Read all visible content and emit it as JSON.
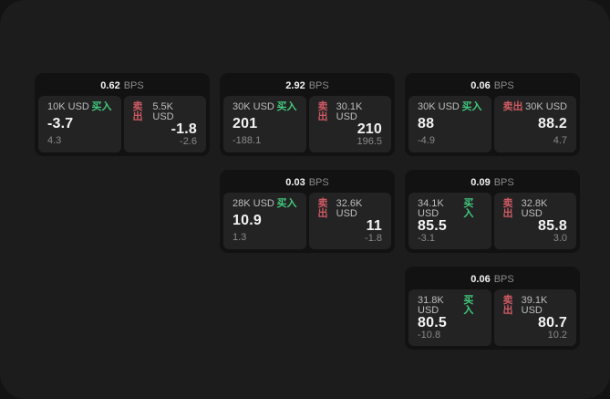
{
  "colors": {
    "page_bg": "#131313",
    "panel_bg": "#1c1c1c",
    "card_bg": "#121212",
    "tile_bg": "#232323",
    "text_primary": "#f2f2f2",
    "text_secondary": "#bdbdbd",
    "text_muted": "#8a8a8a",
    "buy_green": "#41c97d",
    "sell_red": "#d05a64"
  },
  "cards": [
    {
      "bps_value": "0.62",
      "bps_unit": "BPS",
      "buy": {
        "amount": "10K USD",
        "label": "买入",
        "price": "-3.7",
        "delta": "4.3"
      },
      "sell": {
        "label": "卖出",
        "amount": "5.5K USD",
        "price": "-1.8",
        "delta": "-2.6"
      }
    },
    {
      "bps_value": "2.92",
      "bps_unit": "BPS",
      "buy": {
        "amount": "30K USD",
        "label": "买入",
        "price": "201",
        "delta": "-188.1"
      },
      "sell": {
        "label": "卖出",
        "amount": "30.1K USD",
        "price": "210",
        "delta": "196.5"
      }
    },
    {
      "bps_value": "0.06",
      "bps_unit": "BPS",
      "buy": {
        "amount": "30K USD",
        "label": "买入",
        "price": "88",
        "delta": "-4.9"
      },
      "sell": {
        "label": "卖出",
        "amount": "30K USD",
        "price": "88.2",
        "delta": "4.7"
      }
    },
    {
      "bps_value": "0.03",
      "bps_unit": "BPS",
      "buy": {
        "amount": "28K USD",
        "label": "买入",
        "price": "10.9",
        "delta": "1.3"
      },
      "sell": {
        "label": "卖出",
        "amount": "32.6K USD",
        "price": "11",
        "delta": "-1.8"
      }
    },
    {
      "bps_value": "0.09",
      "bps_unit": "BPS",
      "buy": {
        "amount": "34.1K USD",
        "label": "买入",
        "price": "85.5",
        "delta": "-3.1"
      },
      "sell": {
        "label": "卖出",
        "amount": "32.8K USD",
        "price": "85.8",
        "delta": "3.0"
      }
    },
    {
      "bps_value": "0.06",
      "bps_unit": "BPS",
      "buy": {
        "amount": "31.8K USD",
        "label": "买入",
        "price": "80.5",
        "delta": "-10.8"
      },
      "sell": {
        "label": "卖出",
        "amount": "39.1K USD",
        "price": "80.7",
        "delta": "10.2"
      }
    }
  ]
}
